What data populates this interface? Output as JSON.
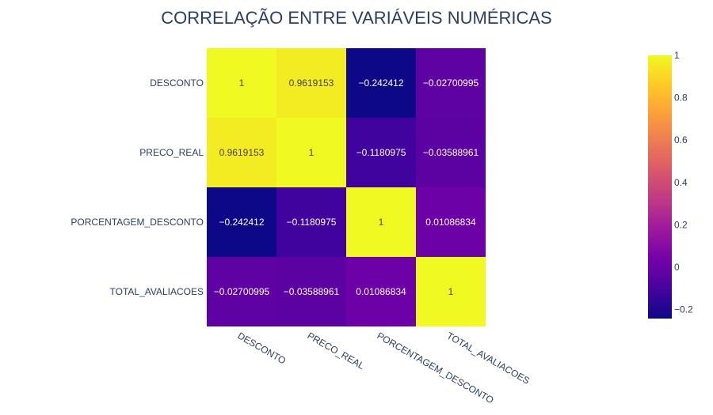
{
  "chart_data": {
    "type": "heatmap",
    "title": "CORRELAÇÃO ENTRE VARIÁVEIS NUMÉRICAS",
    "x": [
      "DESCONTO",
      "PRECO_REAL",
      "PORCENTAGEM_DESCONTO",
      "TOTAL_AVALIACOES"
    ],
    "y": [
      "DESCONTO",
      "PRECO_REAL",
      "PORCENTAGEM_DESCONTO",
      "TOTAL_AVALIACOES"
    ],
    "z": [
      [
        1,
        0.9619153,
        -0.242412,
        -0.02700995
      ],
      [
        0.9619153,
        1,
        -0.1180975,
        -0.03588961
      ],
      [
        -0.242412,
        -0.1180975,
        1,
        0.01086834
      ],
      [
        -0.02700995,
        -0.03588961,
        0.01086834,
        1
      ]
    ],
    "labels": [
      [
        "1",
        "0.9619153",
        "−0.242412",
        "−0.02700995"
      ],
      [
        "0.9619153",
        "1",
        "−0.1180975",
        "−0.03588961"
      ],
      [
        "−0.242412",
        "−0.1180975",
        "1",
        "0.01086834"
      ],
      [
        "−0.02700995",
        "−0.03588961",
        "0.01086834",
        "1"
      ]
    ],
    "zmin": -0.242412,
    "zmax": 1,
    "colorscale": "Plasma",
    "colorbar_ticks": [
      1,
      0.8,
      0.6,
      0.4,
      0.2,
      0,
      -0.2
    ],
    "colorbar_tick_labels": [
      "1",
      "0.8",
      "0.6",
      "0.4",
      "0.2",
      "0",
      "−0.2"
    ]
  }
}
